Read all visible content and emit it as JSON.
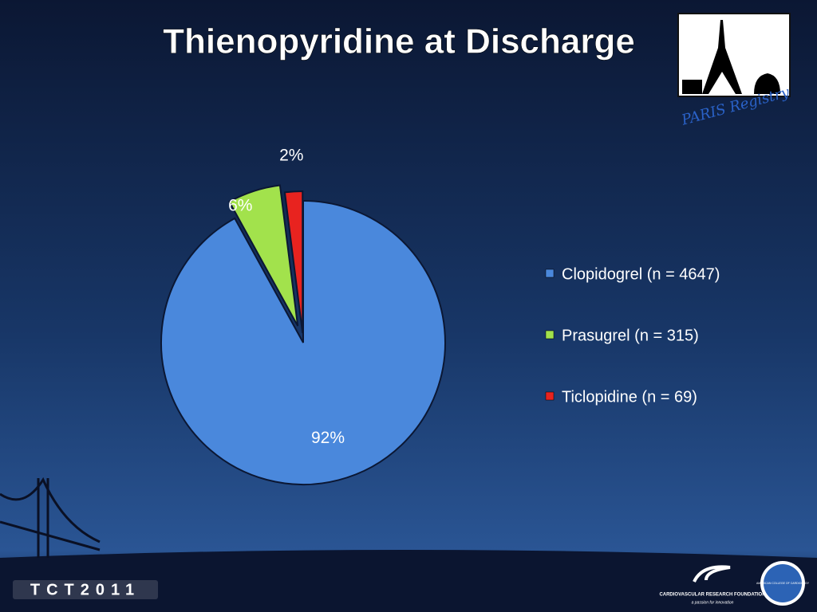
{
  "chart_data": {
    "type": "pie",
    "title": "Thienopyridine at Discharge",
    "categories": [
      "Clopidogrel (n = 4647)",
      "Prasugrel (n = 315)",
      "Ticlopidine (n = 69)"
    ],
    "series": [
      {
        "name": "Thienopyridine at Discharge",
        "values": [
          92,
          6,
          2
        ],
        "value_labels": [
          "92%",
          "6%",
          "2%"
        ],
        "colors": [
          "#4a88dc",
          "#a2e24c",
          "#e8231f"
        ]
      }
    ],
    "legend": "right"
  },
  "logo": {
    "caption": "PARIS Registry"
  },
  "footer": {
    "event": "TCT2011",
    "foundation": "CARDIOVASCULAR RESEARCH FOUNDATION",
    "tagline": "a passion for innovation",
    "college": "AMERICAN COLLEGE OF CARDIOLOGY"
  }
}
